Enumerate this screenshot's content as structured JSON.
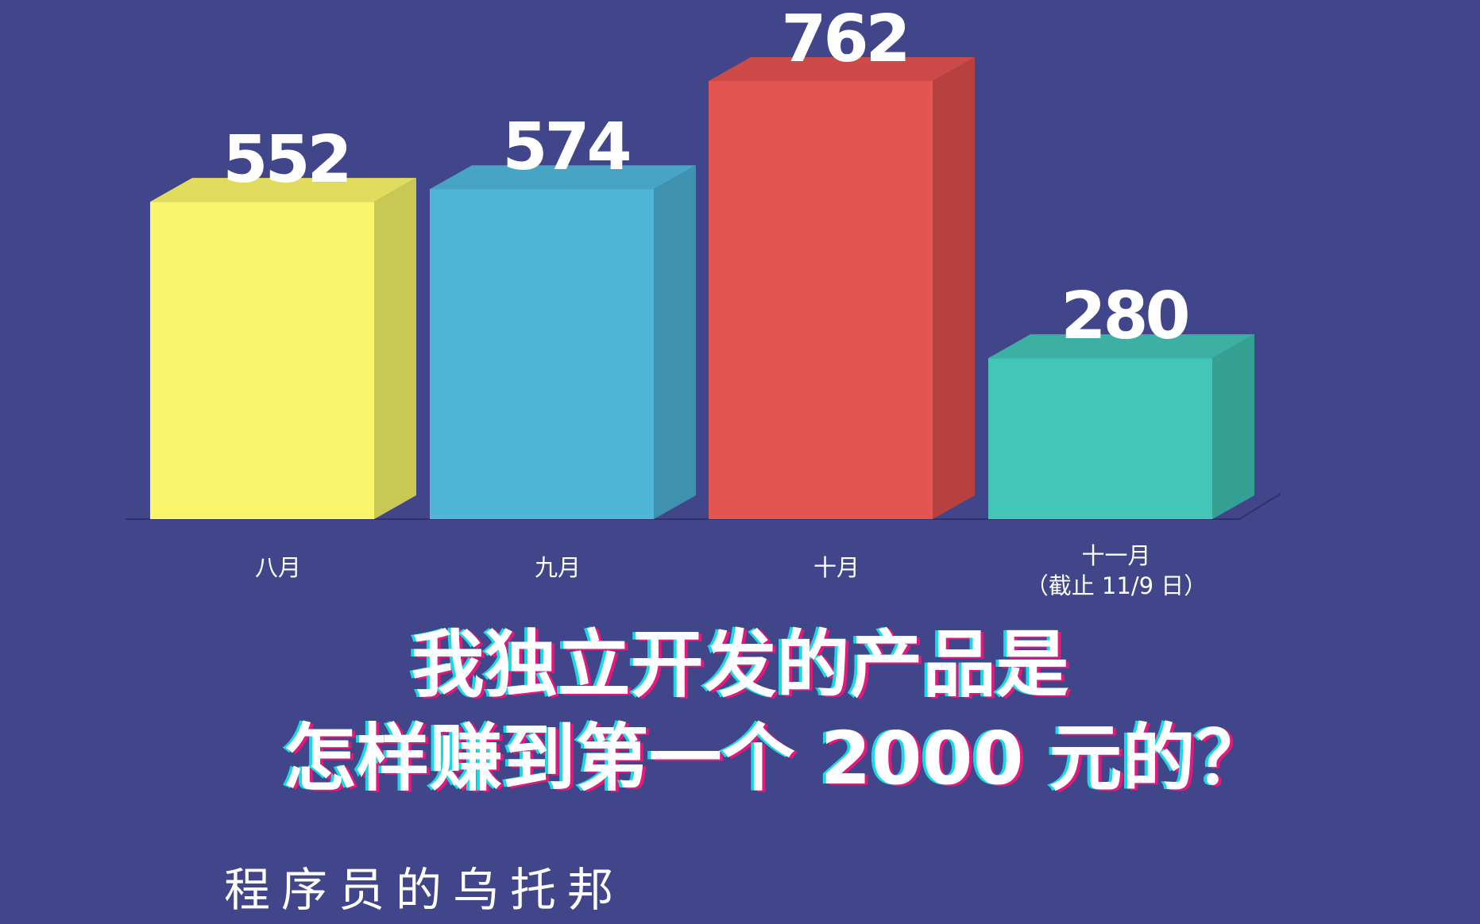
{
  "chart_data": {
    "type": "bar",
    "categories": [
      "八月",
      "九月",
      "十月",
      "十一月"
    ],
    "category_notes": [
      "",
      "",
      "",
      "（截止 11/9 日）"
    ],
    "values": [
      552,
      574,
      762,
      280
    ],
    "ylim": [
      0,
      762
    ],
    "grid": false,
    "legend": "none",
    "colors": {
      "front": [
        "#fbf56b",
        "#50b6d8",
        "#e45551",
        "#44c5b7"
      ],
      "side": [
        "#cac854",
        "#3f91b0",
        "#b84140",
        "#35a094"
      ],
      "top": [
        "#e1dc5d",
        "#47a4c4",
        "#cc4a48",
        "#3cb0a3"
      ]
    }
  },
  "headline": {
    "line1": "我独立开发的产品是",
    "line2": "怎样赚到第一个 2000 元的？"
  },
  "channel_name": "程序员的乌托邦",
  "colors": {
    "background": "#41458a",
    "text": "#ffffff",
    "shadow_cyan": "#19d9e6",
    "shadow_pink": "#e0197a"
  }
}
